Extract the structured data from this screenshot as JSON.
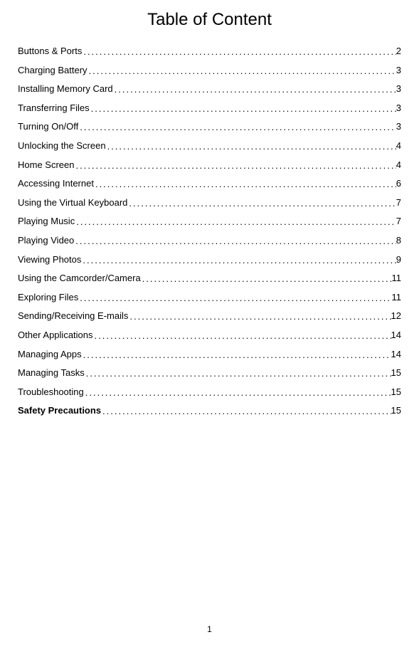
{
  "title": "Table of Content",
  "page_number": "1",
  "text_color": "#000000",
  "background_color": "#ffffff",
  "title_fontsize": 24,
  "body_fontsize": 13,
  "entries": [
    {
      "label": "Buttons & Ports",
      "page": "2",
      "bold": false
    },
    {
      "label": "Charging Battery",
      "page": "3",
      "bold": false
    },
    {
      "label": "Installing Memory Card",
      "page": "3",
      "bold": false
    },
    {
      "label": "Transferring Files",
      "page": "3",
      "bold": false
    },
    {
      "label": "Turning On/Off",
      "page": "3",
      "bold": false
    },
    {
      "label": "Unlocking the Screen",
      "page": "4",
      "bold": false
    },
    {
      "label": "Home Screen",
      "page": "4",
      "bold": false
    },
    {
      "label": "Accessing Internet",
      "page": "6",
      "bold": false
    },
    {
      "label": "Using the Virtual Keyboard",
      "page": "7",
      "bold": false
    },
    {
      "label": "Playing Music",
      "page": "7",
      "bold": false
    },
    {
      "label": "Playing Video",
      "page": "8",
      "bold": false
    },
    {
      "label": "Viewing Photos",
      "page": "9",
      "bold": false
    },
    {
      "label": "Using the Camcorder/Camera",
      "page": "11",
      "bold": false
    },
    {
      "label": "Exploring Files",
      "page": "11",
      "bold": false
    },
    {
      "label": "Sending/Receiving E-mails",
      "page": "12",
      "bold": false
    },
    {
      "label": "Other Applications",
      "page": "14",
      "bold": false
    },
    {
      "label": "Managing Apps",
      "page": "14",
      "bold": false
    },
    {
      "label": "Managing Tasks",
      "page": "15",
      "bold": false
    },
    {
      "label": "Troubleshooting",
      "page": "15",
      "bold": false
    },
    {
      "label": "Safety Precautions",
      "page": "15",
      "bold": true
    }
  ]
}
